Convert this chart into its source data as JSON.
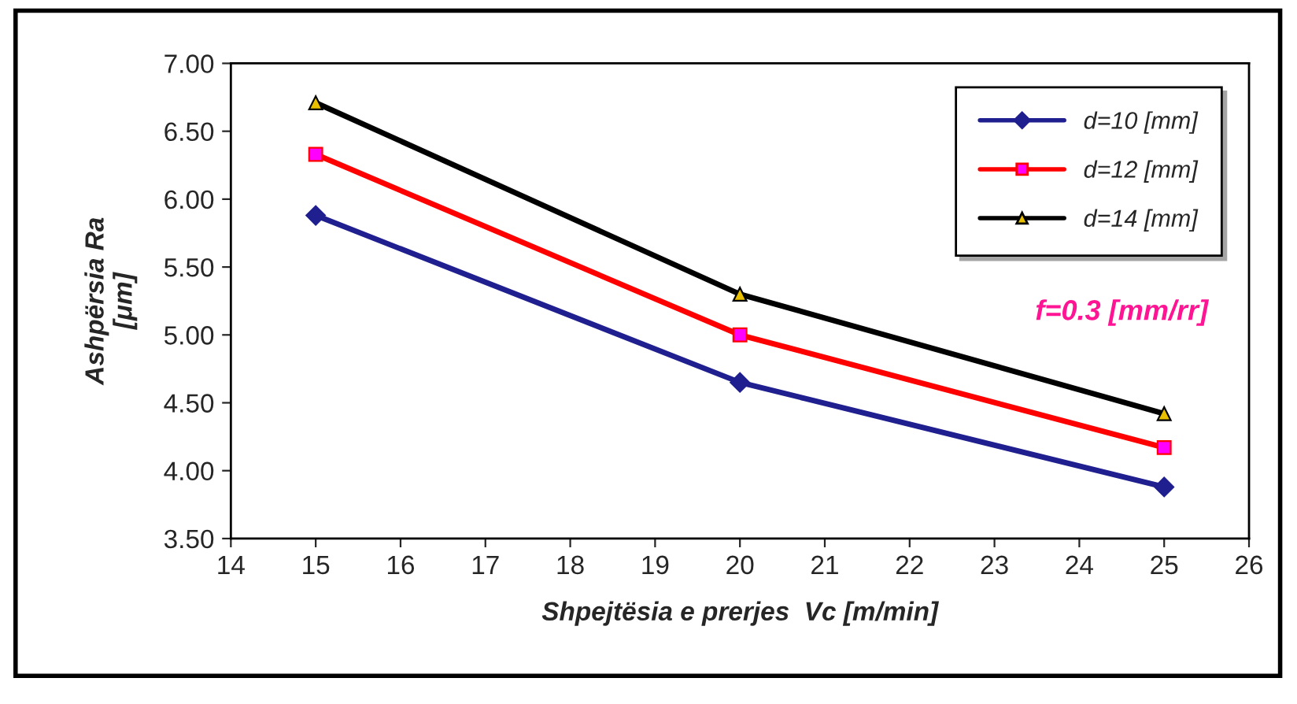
{
  "chart_data": {
    "type": "line",
    "xlabel": "Shpejtësia e prerjes  Vc [m/min]",
    "ylabel": "Ashpërsia Ra\n[μm]",
    "x": [
      15,
      20,
      25
    ],
    "series": [
      {
        "name": "d=10 [mm]",
        "color": "#1f1f8f",
        "marker": "diamond",
        "values": [
          5.88,
          4.65,
          3.88
        ]
      },
      {
        "name": "d=12 [mm]",
        "color": "#ff0000",
        "marker": "square",
        "values": [
          6.33,
          5.0,
          4.17
        ]
      },
      {
        "name": "d=14 [mm]",
        "color": "#000000",
        "marker": "triangle",
        "values": [
          6.71,
          5.3,
          4.42
        ]
      }
    ],
    "annotations": [
      "f=0.3 [mm/rr]"
    ],
    "xlim": [
      14,
      26
    ],
    "xticks": [
      14,
      15,
      16,
      17,
      18,
      19,
      20,
      21,
      22,
      23,
      24,
      25,
      26
    ],
    "ylim": [
      3.5,
      7.0
    ],
    "yticks": [
      {
        "value": 3.5,
        "label": "3.50"
      },
      {
        "value": 4.0,
        "label": "4.00"
      },
      {
        "value": 4.5,
        "label": "4.50"
      },
      {
        "value": 5.0,
        "label": "5.00"
      },
      {
        "value": 5.5,
        "label": "5.50"
      },
      {
        "value": 6.0,
        "label": "6.00"
      },
      {
        "value": 6.5,
        "label": "6.50"
      },
      {
        "value": 7.0,
        "label": "7.00"
      }
    ],
    "grid": false,
    "legend": "top right",
    "line_style": "solid"
  }
}
